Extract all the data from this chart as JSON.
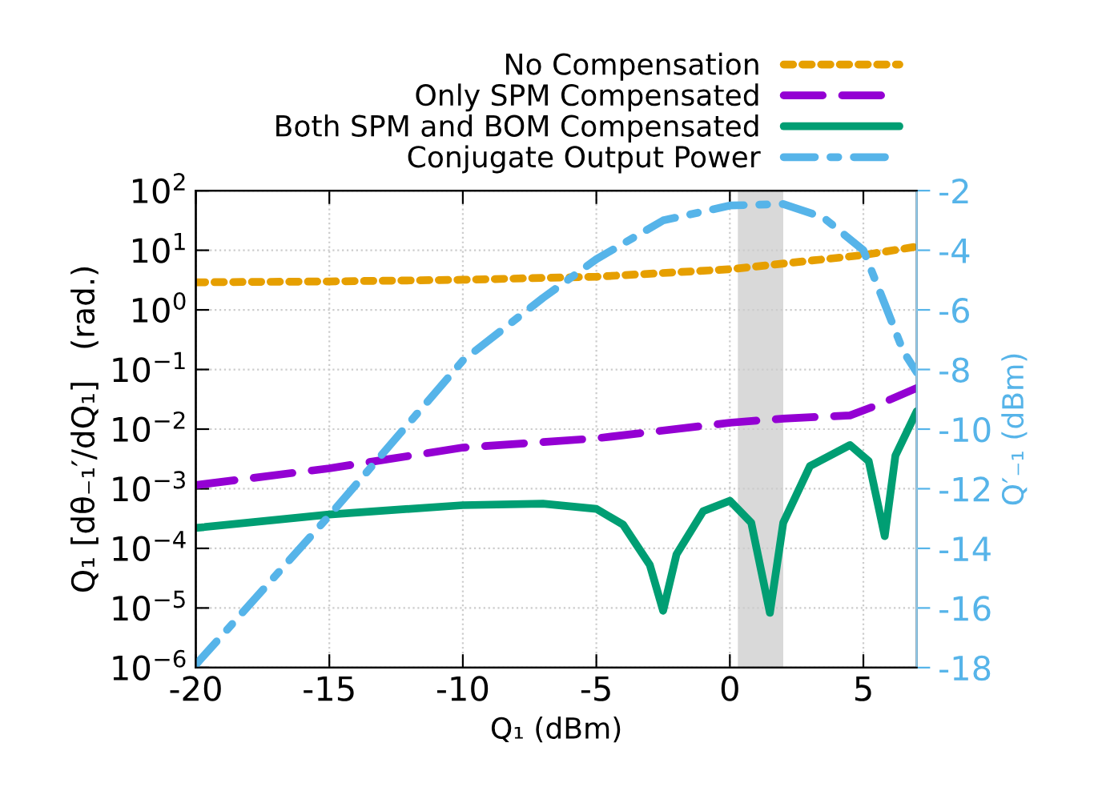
{
  "chart_data": {
    "type": "line",
    "xlabel": "Q₁ (dBm)",
    "ylabel": "Q₁ [dθ₋₁′/dQ₁]   (rad.)",
    "y2label": "Q′₋₁ (dBm)",
    "log": "y",
    "grid": true,
    "legend": "top",
    "marker": "none",
    "xlim": [
      -20,
      7
    ],
    "xticks": [
      -20,
      -15,
      -10,
      -5,
      0,
      5
    ],
    "ylim": [
      1e-06,
      100
    ],
    "yticks": [
      {
        "value": 1e-06,
        "label": "10$^{−6}$"
      },
      {
        "value": 1e-05,
        "label": "10$^{−5}$"
      },
      {
        "value": 0.0001,
        "label": "10$^{−4}$"
      },
      {
        "value": 0.001,
        "label": "10$^{−3}$"
      },
      {
        "value": 0.01,
        "label": "10$^{−2}$"
      },
      {
        "value": 0.1,
        "label": "10$^{−1}$"
      },
      {
        "value": 1,
        "label": "10$^{0}$"
      },
      {
        "value": 10,
        "label": "10$^{1}$"
      },
      {
        "value": 100,
        "label": "10$^{2}$"
      }
    ],
    "y2lim": [
      -18,
      -2
    ],
    "y2ticks": [
      -18,
      -16,
      -14,
      -12,
      -10,
      -8,
      -6,
      -4,
      -2
    ],
    "bands": [
      {
        "axis": "x",
        "from": 0.3,
        "to": 2,
        "color": "#d9d9d9"
      }
    ],
    "series": [
      {
        "name": "No Compensation",
        "color": "#e69f00",
        "line_style": "dotted",
        "x": [
          -20,
          -15,
          -10,
          -5,
          0,
          5,
          7
        ],
        "values": [
          2.9,
          3.0,
          3.2,
          3.6,
          4.8,
          8.3,
          11.5
        ]
      },
      {
        "name": "Only SPM Compensated",
        "color": "#9400d3",
        "line_style": "dashed",
        "x": [
          -20,
          -15,
          -10,
          -5,
          0,
          2,
          4.5,
          5.5,
          7
        ],
        "values": [
          0.00115,
          0.0022,
          0.0049,
          0.007,
          0.0128,
          0.015,
          0.017,
          0.025,
          0.049
        ]
      },
      {
        "name": "Both SPM and BOM Compensated",
        "color": "#009e73",
        "line_style": "solid",
        "x": [
          -20,
          -15,
          -10,
          -7,
          -5,
          -4,
          -3,
          -2.5,
          -2,
          -1,
          0,
          0.8,
          1.5,
          2,
          3,
          4.5,
          5.2,
          5.8,
          6.2,
          7
        ],
        "values": [
          0.00022,
          0.00037,
          0.00053,
          0.00056,
          0.00046,
          0.00025,
          5.3e-05,
          9e-06,
          7.9e-05,
          0.00042,
          0.00063,
          0.00027,
          8.3e-06,
          0.00027,
          0.0024,
          0.0054,
          0.0029,
          0.00016,
          0.0036,
          0.02
        ]
      },
      {
        "name": "Conjugate Output Power",
        "color": "#56b4e9",
        "line_style": "dashdot",
        "axis": "y2",
        "x": [
          -20,
          -15,
          -12.5,
          -10,
          -7,
          -5,
          -2.5,
          0,
          2,
          3.5,
          5,
          5.8,
          6.5,
          7
        ],
        "values": [
          -17.9,
          -12.9,
          -10.3,
          -7.7,
          -5.6,
          -4.3,
          -3.0,
          -2.5,
          -2.45,
          -2.9,
          -4.0,
          -5.8,
          -7.4,
          -8.1
        ]
      }
    ]
  }
}
